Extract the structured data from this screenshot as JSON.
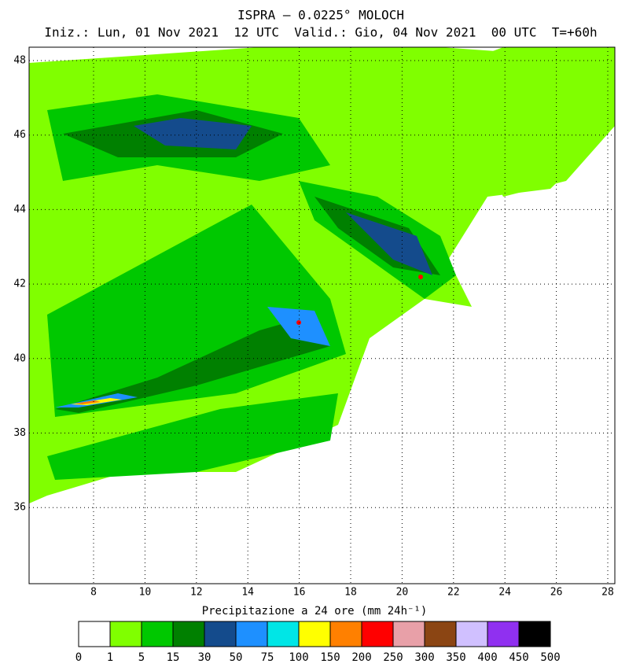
{
  "header": {
    "title": "ISPRA – 0.0225° MOLOCH",
    "subtitle": "Iniz.: Lun, 01 Nov 2021  12 UTC  Valid.: Gio, 04 Nov 2021  00 UTC  T=+60h"
  },
  "map": {
    "lat_labels": [
      48,
      46,
      44,
      42,
      40,
      38,
      36
    ],
    "lon_labels": [
      8,
      10,
      12,
      14,
      16,
      18,
      20,
      22,
      24,
      26,
      28
    ]
  },
  "colorbar": {
    "label": "Precipitazione a 24 ore (mm 24h⁻¹)",
    "colors": [
      "#ffffff",
      "#80ff00",
      "#00c800",
      "#008000",
      "#144b8c",
      "#1e90ff",
      "#00e6e6",
      "#ffff00",
      "#ff8000",
      "#ff0000",
      "#e8a0a8",
      "#8b4513",
      "#d0c0ff",
      "#9030f0",
      "#000000"
    ],
    "ticks": [
      0,
      1,
      5,
      15,
      30,
      50,
      75,
      100,
      150,
      200,
      250,
      300,
      350,
      400,
      450,
      500
    ]
  }
}
